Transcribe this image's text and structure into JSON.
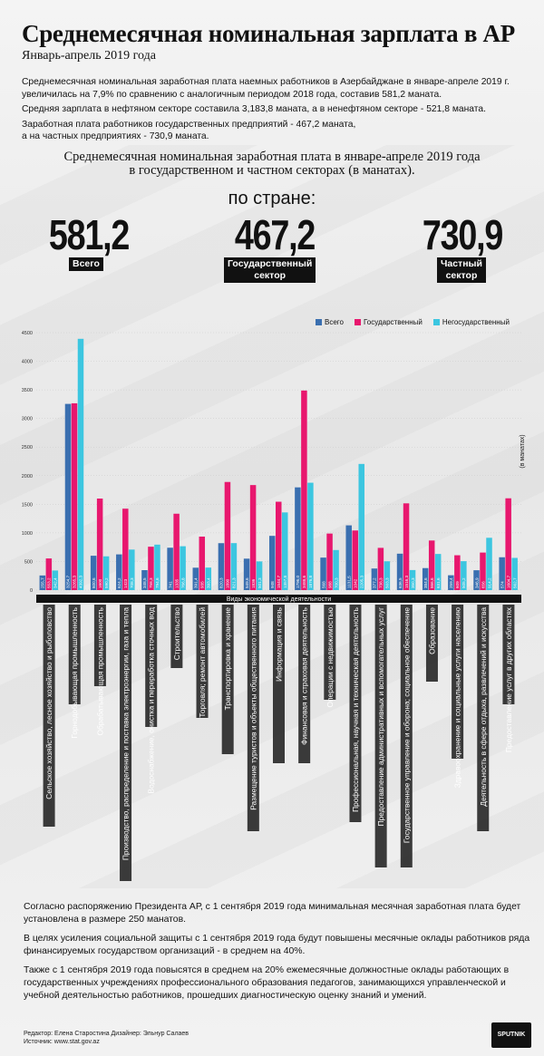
{
  "header": {
    "title": "Среднемесячная номинальная зарплата в АР",
    "subtitle": "Январь-апрель 2019 года"
  },
  "intro": {
    "p1": "Среднемесячная номинальная заработная плата наемных работников в Азербайджане в январе-апреле 2019 г. увеличилась на 7,9% по сравнению с аналогичным периодом 2018 года, составив 581,2 маната.",
    "p2": "Средняя зарплата в нефтяном секторе составила 3,183,8 маната, а в ненефтяном секторе - 521,8 маната.",
    "p3": "Заработная плата работников государственных предприятий - 467,2 маната,",
    "p4": "а на частных предприятиях - 730,9 маната."
  },
  "summary": {
    "heading_line1": "Среднемесячная номинальная заработная плата в январе-апреле 2019 года",
    "heading_line2": "в государственном и частном секторах (в манатах).",
    "country_label": "по стране:",
    "total_value": "581,2",
    "total_label": "Всего",
    "state_value": "467,2",
    "state_label_1": "Государственный",
    "state_label_2": "сектор",
    "private_value": "730,9",
    "private_label_1": "Частный",
    "private_label_2": "сектор"
  },
  "colors": {
    "total": "#3a6fb0",
    "state": "#e8176e",
    "private": "#3cc6e0"
  },
  "chart_data": {
    "type": "bar",
    "xlabel": "Виды экономической деятельности",
    "ylabel": "(в манатах)",
    "ylim": [
      0,
      4500
    ],
    "yticks": [
      0,
      500,
      1000,
      1500,
      2000,
      2500,
      3000,
      3500,
      4000,
      4500
    ],
    "categories": [
      "Сельское хозяйство, лесное хозяйство и рыболовство",
      "Горнодобывающая промышленность",
      "Обрабатывающая промышленность",
      "Производство, распределение и поставка электроэнергии, газа и тепла",
      "Водоснабжение, очистка и переработка сточных вод",
      "Строительство",
      "Торговля; ремонт автомобилей",
      "Транспортировка и хранение",
      "Размещение туристов и объекты общественного питания",
      "Информация и связь",
      "Финансовая и страховая деятельность",
      "Операции с недвижимостью",
      "Профессиональная, научная и техническая деятельность",
      "Предоставление административных и вспомогательных услуг",
      "Государственное управление и оборона; социальное обеспечение",
      "Образование",
      "Здравоохранение и социальные услуги населению",
      "Деятельность в сфере отдыха, развлечений и искусства",
      "Предоставление услуг в других областях"
    ],
    "series": [
      {
        "name": "Всего",
        "values": [
          255.7,
          3254.7,
          600.6,
          624.2,
          348.5,
          741.0,
          391.4,
          820.3,
          549.6,
          948.0,
          1796.0,
          568.0,
          1131.5,
          377.2,
          636.5,
          384.6,
          259.4,
          346.9,
          574.0
        ],
        "labels": [
          "255,7",
          "3254,7",
          "600,6",
          "624,2",
          "348,5",
          "741",
          "391,4",
          "820,3",
          "549,6",
          "948",
          "1796,0",
          "568",
          "1131,5",
          "377,2",
          "636,5",
          "384,6",
          "259,4",
          "346,9",
          "574"
        ]
      },
      {
        "name": "Государственный",
        "values": [
          553.2,
          3265.3,
          1600.0,
          1423.0,
          758.3,
          1335.0,
          935.0,
          1890.0,
          1836.0,
          1544.7,
          3488.6,
          988.0,
          1042.0,
          738.3,
          1516.3,
          866.6,
          609.0,
          656.0,
          1604.7
        ],
        "labels": [
          "553,2",
          "3265,3",
          "1600",
          "1423",
          "758,3",
          "1335",
          "935",
          "1890",
          "1836",
          "1544,7",
          "3488,6",
          "988",
          "1042",
          "738,3",
          "1516,3",
          "866,6",
          "609",
          "656",
          "1604,7"
        ]
      },
      {
        "name": "Негосударственный",
        "values": [
          342.4,
          4392.3,
          590.2,
          708.3,
          794.6,
          766.8,
          393.4,
          821.3,
          501.3,
          1357.8,
          1876.8,
          700.3,
          2205.3,
          503.3,
          350.3,
          631.6,
          505.2,
          914.2,
          562.7
        ],
        "labels": [
          "342,4",
          "4392,3",
          "590,2",
          "708,3",
          "794,6",
          "766,8",
          "393,4",
          "821,3",
          "501,3",
          "1357,8",
          "1876,8",
          "700,3",
          "2205,3",
          "503,3",
          "350,3",
          "631,6",
          "505,2",
          "914,2",
          "562,7"
        ]
      }
    ]
  },
  "footer": {
    "p1": "Согласно распоряжению Президента АР, с 1 сентября 2019 года минимальная месячная заработная плата будет установлена в размере 250 манатов.",
    "p2": "В целях усиления социальной защиты с 1 сентября 2019 года будут повышены месячные оклады работников ряда финансируемых государством организаций - в среднем на 40%.",
    "p3": "Также с 1 сентября 2019 года повысятся в среднем на 20% ежемесячные должностные оклады работающих в государственных учреждениях профессионального образования педагогов, занимающихся управленческой и учебной деятельностью работников, прошедших диагностическую оценку знаний и умений.",
    "credits": "Редактор: Елена Старостина  Дизайнер: Эльнур Салаев",
    "source": "Источник: www.stat.gov.az",
    "logo": "SPUTNIK"
  }
}
